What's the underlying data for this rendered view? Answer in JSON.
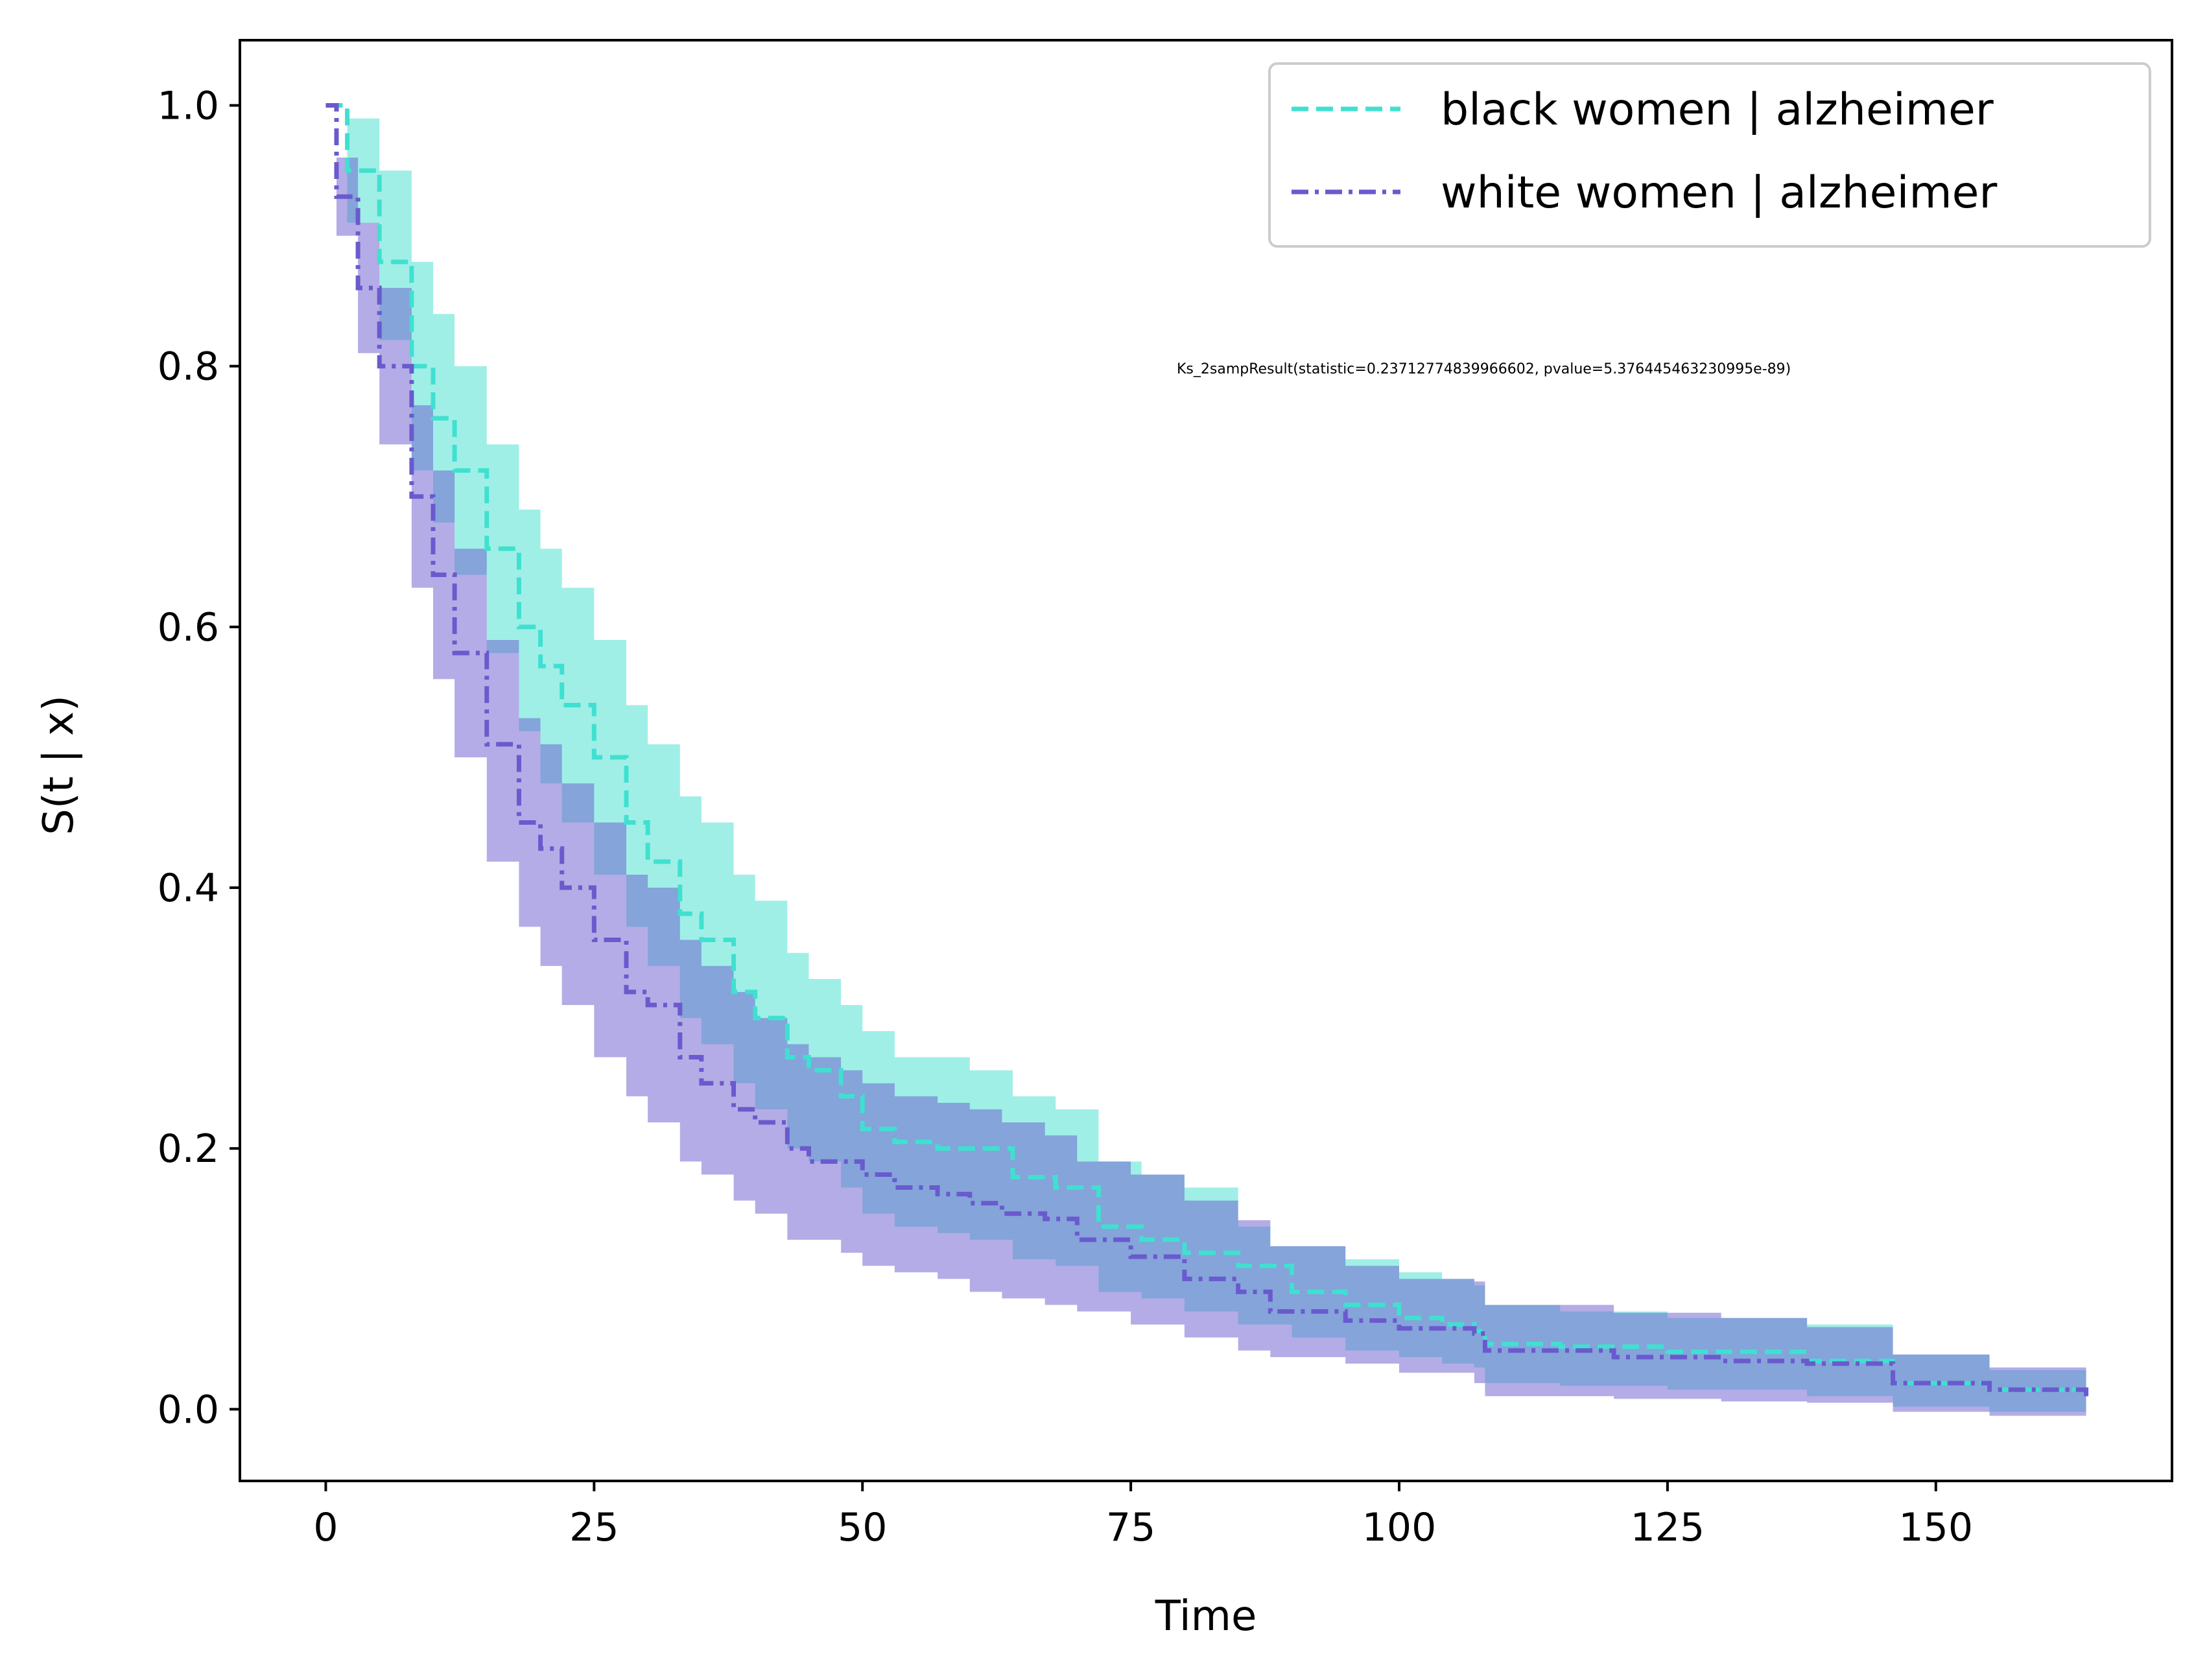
{
  "chart_data": {
    "type": "line",
    "chart_kind": "survival curve with confidence bands",
    "xlabel": "Time",
    "ylabel": "S(t | x)",
    "xlim": [
      -8,
      172
    ],
    "ylim": [
      -0.055,
      1.05
    ],
    "xticks": [
      0,
      25,
      50,
      75,
      100,
      125,
      150
    ],
    "xtick_labels": [
      "0",
      "25",
      "50",
      "75",
      "100",
      "125",
      "150"
    ],
    "yticks": [
      0.0,
      0.2,
      0.4,
      0.6,
      0.8,
      1.0
    ],
    "ytick_labels": [
      "0.0",
      "0.2",
      "0.4",
      "0.6",
      "0.8",
      "1.0"
    ],
    "grid": false,
    "legend_position": "top-right",
    "annotation": "Ks_2sampResult(statistic=0.23712774839966602, pvalue=5.376445463230995e-89)",
    "series": [
      {
        "name": "black women | alzheimer",
        "color": "#40e0d0",
        "line_style": "dashed",
        "band_color": "#40e0d0",
        "points": [
          [
            0,
            1.0
          ],
          [
            2,
            0.95
          ],
          [
            5,
            0.88
          ],
          [
            8,
            0.8
          ],
          [
            10,
            0.76
          ],
          [
            12,
            0.72
          ],
          [
            15,
            0.66
          ],
          [
            18,
            0.6
          ],
          [
            20,
            0.57
          ],
          [
            22,
            0.54
          ],
          [
            25,
            0.5
          ],
          [
            28,
            0.45
          ],
          [
            30,
            0.42
          ],
          [
            33,
            0.38
          ],
          [
            35,
            0.36
          ],
          [
            38,
            0.32
          ],
          [
            40,
            0.3
          ],
          [
            43,
            0.27
          ],
          [
            45,
            0.26
          ],
          [
            48,
            0.24
          ],
          [
            50,
            0.215
          ],
          [
            53,
            0.205
          ],
          [
            57,
            0.2
          ],
          [
            60,
            0.2
          ],
          [
            64,
            0.178
          ],
          [
            68,
            0.17
          ],
          [
            72,
            0.14
          ],
          [
            76,
            0.13
          ],
          [
            80,
            0.12
          ],
          [
            85,
            0.11
          ],
          [
            90,
            0.09
          ],
          [
            95,
            0.08
          ],
          [
            100,
            0.07
          ],
          [
            104,
            0.065
          ],
          [
            107,
            0.06
          ],
          [
            108,
            0.05
          ],
          [
            115,
            0.048
          ],
          [
            125,
            0.044
          ],
          [
            138,
            0.037
          ],
          [
            146,
            0.02
          ],
          [
            155,
            0.015
          ],
          [
            164,
            0.008
          ]
        ],
        "upper": [
          [
            0,
            1.0
          ],
          [
            2,
            0.99
          ],
          [
            5,
            0.95
          ],
          [
            8,
            0.88
          ],
          [
            10,
            0.84
          ],
          [
            12,
            0.8
          ],
          [
            15,
            0.74
          ],
          [
            18,
            0.69
          ],
          [
            20,
            0.66
          ],
          [
            22,
            0.63
          ],
          [
            25,
            0.59
          ],
          [
            28,
            0.54
          ],
          [
            30,
            0.51
          ],
          [
            33,
            0.47
          ],
          [
            35,
            0.45
          ],
          [
            38,
            0.41
          ],
          [
            40,
            0.39
          ],
          [
            43,
            0.35
          ],
          [
            45,
            0.33
          ],
          [
            48,
            0.31
          ],
          [
            50,
            0.29
          ],
          [
            53,
            0.27
          ],
          [
            57,
            0.27
          ],
          [
            60,
            0.26
          ],
          [
            64,
            0.24
          ],
          [
            68,
            0.23
          ],
          [
            72,
            0.19
          ],
          [
            76,
            0.18
          ],
          [
            80,
            0.17
          ],
          [
            85,
            0.14
          ],
          [
            88,
            0.125
          ],
          [
            95,
            0.115
          ],
          [
            100,
            0.105
          ],
          [
            104,
            0.1
          ],
          [
            107,
            0.095
          ],
          [
            108,
            0.08
          ],
          [
            115,
            0.075
          ],
          [
            125,
            0.07
          ],
          [
            138,
            0.065
          ],
          [
            146,
            0.042
          ],
          [
            155,
            0.03
          ],
          [
            164,
            0.022
          ]
        ],
        "lower": [
          [
            0,
            1.0
          ],
          [
            2,
            0.91
          ],
          [
            5,
            0.82
          ],
          [
            8,
            0.72
          ],
          [
            10,
            0.68
          ],
          [
            12,
            0.64
          ],
          [
            15,
            0.58
          ],
          [
            18,
            0.52
          ],
          [
            20,
            0.48
          ],
          [
            22,
            0.45
          ],
          [
            25,
            0.41
          ],
          [
            28,
            0.37
          ],
          [
            30,
            0.34
          ],
          [
            33,
            0.3
          ],
          [
            35,
            0.28
          ],
          [
            38,
            0.25
          ],
          [
            40,
            0.23
          ],
          [
            43,
            0.2
          ],
          [
            45,
            0.19
          ],
          [
            48,
            0.17
          ],
          [
            50,
            0.15
          ],
          [
            53,
            0.14
          ],
          [
            57,
            0.135
          ],
          [
            60,
            0.13
          ],
          [
            64,
            0.115
          ],
          [
            68,
            0.11
          ],
          [
            72,
            0.09
          ],
          [
            76,
            0.085
          ],
          [
            80,
            0.075
          ],
          [
            85,
            0.065
          ],
          [
            90,
            0.055
          ],
          [
            95,
            0.045
          ],
          [
            100,
            0.04
          ],
          [
            104,
            0.035
          ],
          [
            107,
            0.032
          ],
          [
            108,
            0.02
          ],
          [
            115,
            0.018
          ],
          [
            125,
            0.015
          ],
          [
            138,
            0.01
          ],
          [
            146,
            0.002
          ],
          [
            155,
            -0.002
          ],
          [
            164,
            -0.004
          ]
        ]
      },
      {
        "name": "white women | alzheimer",
        "color": "#6a5acd",
        "line_style": "dashdot",
        "band_color": "#6a5acd",
        "points": [
          [
            0,
            1.0
          ],
          [
            1,
            0.93
          ],
          [
            3,
            0.86
          ],
          [
            5,
            0.8
          ],
          [
            8,
            0.7
          ],
          [
            10,
            0.64
          ],
          [
            12,
            0.58
          ],
          [
            15,
            0.51
          ],
          [
            18,
            0.45
          ],
          [
            20,
            0.43
          ],
          [
            22,
            0.4
          ],
          [
            25,
            0.36
          ],
          [
            28,
            0.32
          ],
          [
            30,
            0.31
          ],
          [
            33,
            0.27
          ],
          [
            35,
            0.25
          ],
          [
            38,
            0.23
          ],
          [
            40,
            0.22
          ],
          [
            43,
            0.2
          ],
          [
            45,
            0.19
          ],
          [
            48,
            0.19
          ],
          [
            50,
            0.18
          ],
          [
            53,
            0.17
          ],
          [
            57,
            0.165
          ],
          [
            60,
            0.158
          ],
          [
            63,
            0.15
          ],
          [
            67,
            0.146
          ],
          [
            70,
            0.13
          ],
          [
            75,
            0.117
          ],
          [
            80,
            0.1
          ],
          [
            85,
            0.09
          ],
          [
            88,
            0.075
          ],
          [
            95,
            0.068
          ],
          [
            100,
            0.062
          ],
          [
            107,
            0.058
          ],
          [
            108,
            0.045
          ],
          [
            120,
            0.04
          ],
          [
            130,
            0.037
          ],
          [
            138,
            0.035
          ],
          [
            146,
            0.02
          ],
          [
            155,
            0.015
          ],
          [
            164,
            0.008
          ]
        ],
        "upper": [
          [
            0,
            1.0
          ],
          [
            1,
            0.96
          ],
          [
            3,
            0.91
          ],
          [
            5,
            0.86
          ],
          [
            8,
            0.77
          ],
          [
            10,
            0.72
          ],
          [
            12,
            0.66
          ],
          [
            15,
            0.59
          ],
          [
            18,
            0.53
          ],
          [
            20,
            0.51
          ],
          [
            22,
            0.48
          ],
          [
            25,
            0.45
          ],
          [
            28,
            0.41
          ],
          [
            30,
            0.4
          ],
          [
            33,
            0.36
          ],
          [
            35,
            0.34
          ],
          [
            38,
            0.32
          ],
          [
            40,
            0.3
          ],
          [
            43,
            0.28
          ],
          [
            45,
            0.27
          ],
          [
            48,
            0.26
          ],
          [
            50,
            0.25
          ],
          [
            53,
            0.24
          ],
          [
            57,
            0.235
          ],
          [
            60,
            0.23
          ],
          [
            63,
            0.22
          ],
          [
            67,
            0.21
          ],
          [
            70,
            0.19
          ],
          [
            75,
            0.18
          ],
          [
            80,
            0.16
          ],
          [
            85,
            0.145
          ],
          [
            88,
            0.125
          ],
          [
            95,
            0.11
          ],
          [
            100,
            0.1
          ],
          [
            107,
            0.098
          ],
          [
            108,
            0.08
          ],
          [
            120,
            0.074
          ],
          [
            130,
            0.07
          ],
          [
            138,
            0.063
          ],
          [
            146,
            0.042
          ],
          [
            155,
            0.032
          ],
          [
            164,
            0.024
          ]
        ],
        "lower": [
          [
            0,
            1.0
          ],
          [
            1,
            0.9
          ],
          [
            3,
            0.81
          ],
          [
            5,
            0.74
          ],
          [
            8,
            0.63
          ],
          [
            10,
            0.56
          ],
          [
            12,
            0.5
          ],
          [
            15,
            0.42
          ],
          [
            18,
            0.37
          ],
          [
            20,
            0.34
          ],
          [
            22,
            0.31
          ],
          [
            25,
            0.27
          ],
          [
            28,
            0.24
          ],
          [
            30,
            0.22
          ],
          [
            33,
            0.19
          ],
          [
            35,
            0.18
          ],
          [
            38,
            0.16
          ],
          [
            40,
            0.15
          ],
          [
            43,
            0.13
          ],
          [
            45,
            0.13
          ],
          [
            48,
            0.12
          ],
          [
            50,
            0.11
          ],
          [
            53,
            0.105
          ],
          [
            57,
            0.1
          ],
          [
            60,
            0.09
          ],
          [
            63,
            0.085
          ],
          [
            67,
            0.08
          ],
          [
            70,
            0.075
          ],
          [
            75,
            0.065
          ],
          [
            80,
            0.055
          ],
          [
            85,
            0.045
          ],
          [
            88,
            0.04
          ],
          [
            95,
            0.035
          ],
          [
            100,
            0.028
          ],
          [
            107,
            0.02
          ],
          [
            108,
            0.01
          ],
          [
            120,
            0.008
          ],
          [
            130,
            0.006
          ],
          [
            138,
            0.005
          ],
          [
            146,
            -0.002
          ],
          [
            155,
            -0.005
          ],
          [
            164,
            -0.008
          ]
        ]
      }
    ]
  }
}
